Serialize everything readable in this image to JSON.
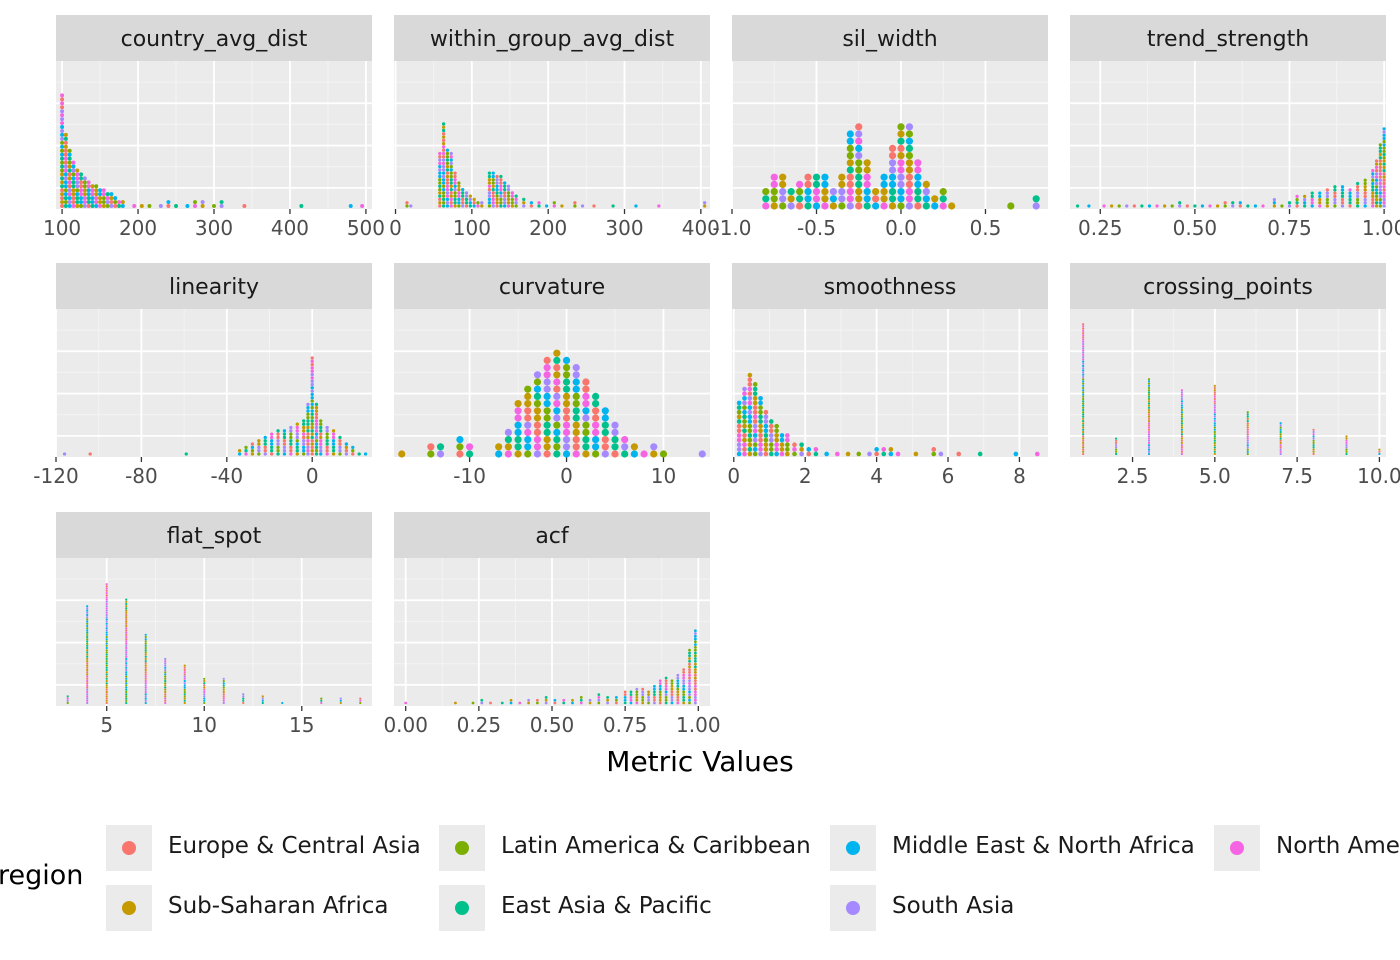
{
  "chart_data": {
    "type": "scatter",
    "subtype": "dotplot-faceted",
    "xlabel": "Metric Values",
    "ylabel": "",
    "grid": true,
    "legend": {
      "title": "region",
      "position": "bottom",
      "entries": [
        {
          "name": "Europe & Central Asia",
          "color": "#F8766D"
        },
        {
          "name": "Latin America & Caribbean",
          "color": "#7CAE00"
        },
        {
          "name": "Middle East & North Africa",
          "color": "#00B4EF"
        },
        {
          "name": "North America",
          "color": "#F564E3"
        },
        {
          "name": "Sub-Saharan Africa",
          "color": "#C49A00"
        },
        {
          "name": "East Asia & Pacific",
          "color": "#00C08B"
        },
        {
          "name": "South Asia",
          "color": "#A58AFF"
        }
      ]
    },
    "panels": [
      {
        "title": "country_avg_dist",
        "xlim": [
          92,
          508
        ],
        "ticks": [
          100,
          200,
          300,
          400,
          500
        ],
        "tick_labels": [
          "100",
          "200",
          "300",
          "400",
          "500"
        ],
        "binwidth": 5.2,
        "bins": [
          [
            100,
            29
          ],
          [
            105,
            19
          ],
          [
            110,
            15
          ],
          [
            115,
            12
          ],
          [
            120,
            10
          ],
          [
            125,
            9
          ],
          [
            130,
            8
          ],
          [
            135,
            7
          ],
          [
            140,
            6
          ],
          [
            145,
            6
          ],
          [
            150,
            5
          ],
          [
            155,
            5
          ],
          [
            160,
            4
          ],
          [
            165,
            4
          ],
          [
            170,
            3
          ],
          [
            175,
            2
          ],
          [
            180,
            2
          ],
          [
            195,
            1
          ],
          [
            205,
            1
          ],
          [
            215,
            1
          ],
          [
            230,
            1
          ],
          [
            240,
            2
          ],
          [
            250,
            1
          ],
          [
            265,
            1
          ],
          [
            275,
            2
          ],
          [
            285,
            2
          ],
          [
            300,
            1
          ],
          [
            310,
            2
          ],
          [
            340,
            1
          ],
          [
            415,
            1
          ],
          [
            480,
            1
          ],
          [
            495,
            1
          ]
        ]
      },
      {
        "title": "within_group_avg_dist",
        "xlim": [
          -2,
          412
        ],
        "ticks": [
          0,
          100,
          200,
          300,
          400
        ],
        "tick_labels": [
          "0",
          "100",
          "200",
          "300",
          "400"
        ],
        "binwidth": 4.3,
        "bins": [
          [
            15,
            2
          ],
          [
            20,
            1
          ],
          [
            58,
            17
          ],
          [
            63,
            26
          ],
          [
            68,
            18
          ],
          [
            73,
            17
          ],
          [
            78,
            11
          ],
          [
            83,
            8
          ],
          [
            88,
            6
          ],
          [
            93,
            5
          ],
          [
            98,
            4
          ],
          [
            103,
            3
          ],
          [
            108,
            2
          ],
          [
            113,
            2
          ],
          [
            123,
            11
          ],
          [
            128,
            11
          ],
          [
            133,
            10
          ],
          [
            138,
            10
          ],
          [
            143,
            8
          ],
          [
            148,
            7
          ],
          [
            153,
            5
          ],
          [
            158,
            4
          ],
          [
            168,
            3
          ],
          [
            178,
            2
          ],
          [
            188,
            2
          ],
          [
            198,
            1
          ],
          [
            208,
            2
          ],
          [
            218,
            1
          ],
          [
            235,
            2
          ],
          [
            245,
            1
          ],
          [
            260,
            1
          ],
          [
            285,
            1
          ],
          [
            315,
            1
          ],
          [
            345,
            1
          ],
          [
            405,
            2
          ]
        ]
      },
      {
        "title": "sil_width",
        "xlim": [
          -1.0,
          0.87
        ],
        "ticks": [
          -1.0,
          -0.5,
          0.0,
          0.5
        ],
        "tick_labels": [
          "-1.0",
          "-0.5",
          "0.0",
          "0.5"
        ],
        "binwidth": 0.045,
        "bins": [
          [
            -0.8,
            3
          ],
          [
            -0.75,
            5
          ],
          [
            -0.7,
            5
          ],
          [
            -0.65,
            3
          ],
          [
            -0.6,
            4
          ],
          [
            -0.55,
            5
          ],
          [
            -0.5,
            5
          ],
          [
            -0.45,
            5
          ],
          [
            -0.4,
            3
          ],
          [
            -0.35,
            5
          ],
          [
            -0.3,
            11
          ],
          [
            -0.25,
            12
          ],
          [
            -0.2,
            7
          ],
          [
            -0.15,
            3
          ],
          [
            -0.1,
            5
          ],
          [
            -0.05,
            9
          ],
          [
            0.0,
            12
          ],
          [
            0.05,
            12
          ],
          [
            0.1,
            7
          ],
          [
            0.15,
            4
          ],
          [
            0.2,
            2
          ],
          [
            0.25,
            3
          ],
          [
            0.3,
            1
          ],
          [
            0.65,
            1
          ],
          [
            0.8,
            2
          ]
        ]
      },
      {
        "title": "trend_strength",
        "xlim": [
          0.17,
          1.005
        ],
        "ticks": [
          0.25,
          0.5,
          0.75,
          1.0
        ],
        "tick_labels": [
          "0.25",
          "0.50",
          "0.75",
          "1.00"
        ],
        "binwidth": 0.0085,
        "bins": [
          [
            0.19,
            1
          ],
          [
            0.22,
            1
          ],
          [
            0.26,
            1
          ],
          [
            0.28,
            1
          ],
          [
            0.3,
            1
          ],
          [
            0.32,
            1
          ],
          [
            0.34,
            1
          ],
          [
            0.36,
            1
          ],
          [
            0.38,
            1
          ],
          [
            0.4,
            1
          ],
          [
            0.42,
            1
          ],
          [
            0.44,
            1
          ],
          [
            0.46,
            2
          ],
          [
            0.48,
            1
          ],
          [
            0.5,
            1
          ],
          [
            0.52,
            1
          ],
          [
            0.54,
            1
          ],
          [
            0.56,
            1
          ],
          [
            0.58,
            2
          ],
          [
            0.6,
            2
          ],
          [
            0.62,
            2
          ],
          [
            0.64,
            1
          ],
          [
            0.66,
            1
          ],
          [
            0.68,
            1
          ],
          [
            0.71,
            3
          ],
          [
            0.73,
            1
          ],
          [
            0.75,
            2
          ],
          [
            0.77,
            4
          ],
          [
            0.79,
            4
          ],
          [
            0.81,
            5
          ],
          [
            0.83,
            5
          ],
          [
            0.85,
            6
          ],
          [
            0.87,
            7
          ],
          [
            0.89,
            7
          ],
          [
            0.91,
            6
          ],
          [
            0.93,
            8
          ],
          [
            0.95,
            9
          ],
          [
            0.97,
            12
          ],
          [
            0.98,
            15
          ],
          [
            0.99,
            20
          ],
          [
            1.0,
            25
          ]
        ]
      },
      {
        "title": "linearity",
        "xlim": [
          -120,
          28
        ],
        "ticks": [
          -120,
          -80,
          -40,
          0
        ],
        "tick_labels": [
          "-120",
          "-80",
          "-40",
          "0"
        ],
        "binwidth": 1.55,
        "bins": [
          [
            -116,
            1
          ],
          [
            -104,
            1
          ],
          [
            -59,
            1
          ],
          [
            -34,
            2
          ],
          [
            -31,
            3
          ],
          [
            -28,
            4
          ],
          [
            -25,
            5
          ],
          [
            -22,
            6
          ],
          [
            -19,
            7
          ],
          [
            -16,
            8
          ],
          [
            -13,
            8
          ],
          [
            -10,
            9
          ],
          [
            -7,
            10
          ],
          [
            -4,
            11
          ],
          [
            -2,
            16
          ],
          [
            0,
            30
          ],
          [
            2,
            16
          ],
          [
            4,
            11
          ],
          [
            7,
            9
          ],
          [
            10,
            8
          ],
          [
            13,
            6
          ],
          [
            16,
            4
          ],
          [
            19,
            3
          ],
          [
            22,
            1
          ],
          [
            25,
            1
          ]
        ]
      },
      {
        "title": "curvature",
        "xlim": [
          -17.8,
          14.8
        ],
        "ticks": [
          -10,
          0,
          10
        ],
        "tick_labels": [
          "-10",
          "0",
          "10"
        ],
        "binwidth": 0.75,
        "bins": [
          [
            -17,
            1
          ],
          [
            -14,
            2
          ],
          [
            -13,
            2
          ],
          [
            -11,
            3
          ],
          [
            -10,
            2
          ],
          [
            -7,
            2
          ],
          [
            -6,
            4
          ],
          [
            -5,
            8
          ],
          [
            -4,
            10
          ],
          [
            -3,
            12
          ],
          [
            -2,
            14
          ],
          [
            -1,
            15
          ],
          [
            0,
            14
          ],
          [
            1,
            13
          ],
          [
            2,
            11
          ],
          [
            3,
            9
          ],
          [
            4,
            7
          ],
          [
            5,
            5
          ],
          [
            6,
            3
          ],
          [
            7,
            2
          ],
          [
            8,
            1
          ],
          [
            9,
            2
          ],
          [
            10,
            1
          ],
          [
            14,
            1
          ]
        ]
      },
      {
        "title": "smoothness",
        "xlim": [
          -0.05,
          8.8
        ],
        "ticks": [
          0,
          2,
          4,
          6,
          8
        ],
        "tick_labels": [
          "0",
          "2",
          "4",
          "6",
          "8"
        ],
        "binwidth": 0.13,
        "bins": [
          [
            0.15,
            12
          ],
          [
            0.3,
            15
          ],
          [
            0.45,
            18
          ],
          [
            0.6,
            16
          ],
          [
            0.75,
            13
          ],
          [
            0.9,
            10
          ],
          [
            1.05,
            8
          ],
          [
            1.2,
            7
          ],
          [
            1.35,
            5
          ],
          [
            1.5,
            5
          ],
          [
            1.7,
            3
          ],
          [
            1.9,
            3
          ],
          [
            2.1,
            2
          ],
          [
            2.3,
            2
          ],
          [
            2.6,
            1
          ],
          [
            2.9,
            1
          ],
          [
            3.2,
            1
          ],
          [
            3.5,
            1
          ],
          [
            3.8,
            1
          ],
          [
            4.0,
            2
          ],
          [
            4.2,
            2
          ],
          [
            4.4,
            2
          ],
          [
            4.6,
            1
          ],
          [
            5.1,
            1
          ],
          [
            5.6,
            2
          ],
          [
            5.8,
            1
          ],
          [
            6.3,
            1
          ],
          [
            6.9,
            1
          ],
          [
            7.9,
            1
          ],
          [
            8.5,
            1
          ]
        ]
      },
      {
        "title": "crossing_points",
        "xlim": [
          0.6,
          10.2
        ],
        "ticks": [
          2.5,
          5.0,
          7.5,
          10.0
        ],
        "tick_labels": [
          "2.5",
          "5.0",
          "7.5",
          "10.0"
        ],
        "binwidth": 0.015,
        "bins": [
          [
            1,
            60
          ],
          [
            2,
            8
          ],
          [
            3,
            35
          ],
          [
            4,
            30
          ],
          [
            5,
            32
          ],
          [
            6,
            20
          ],
          [
            7,
            15
          ],
          [
            8,
            12
          ],
          [
            9,
            9
          ],
          [
            10,
            3
          ]
        ]
      },
      {
        "title": "flat_spot",
        "xlim": [
          2.4,
          18.6
        ],
        "ticks": [
          5,
          10,
          15
        ],
        "tick_labels": [
          "5",
          "10",
          "15"
        ],
        "binwidth": 0.04,
        "bins": [
          [
            3,
            4
          ],
          [
            4,
            45
          ],
          [
            5,
            55
          ],
          [
            6,
            48
          ],
          [
            7,
            32
          ],
          [
            8,
            21
          ],
          [
            9,
            18
          ],
          [
            10,
            12
          ],
          [
            11,
            12
          ],
          [
            12,
            5
          ],
          [
            13,
            4
          ],
          [
            14,
            1
          ],
          [
            16,
            3
          ],
          [
            17,
            3
          ],
          [
            18,
            3
          ]
        ]
      },
      {
        "title": "acf",
        "xlim": [
          -0.04,
          1.04
        ],
        "ticks": [
          0.0,
          0.25,
          0.5,
          0.75,
          1.0
        ],
        "tick_labels": [
          "0.00",
          "0.25",
          "0.50",
          "0.75",
          "1.00"
        ],
        "binwidth": 0.0095,
        "bins": [
          [
            0.0,
            1
          ],
          [
            0.17,
            1
          ],
          [
            0.23,
            1
          ],
          [
            0.26,
            2
          ],
          [
            0.29,
            1
          ],
          [
            0.33,
            1
          ],
          [
            0.36,
            2
          ],
          [
            0.39,
            1
          ],
          [
            0.42,
            2
          ],
          [
            0.45,
            2
          ],
          [
            0.48,
            3
          ],
          [
            0.51,
            2
          ],
          [
            0.54,
            2
          ],
          [
            0.57,
            2
          ],
          [
            0.6,
            3
          ],
          [
            0.63,
            2
          ],
          [
            0.66,
            4
          ],
          [
            0.69,
            3
          ],
          [
            0.72,
            3
          ],
          [
            0.75,
            5
          ],
          [
            0.77,
            5
          ],
          [
            0.79,
            6
          ],
          [
            0.81,
            6
          ],
          [
            0.83,
            5
          ],
          [
            0.85,
            7
          ],
          [
            0.87,
            9
          ],
          [
            0.89,
            10
          ],
          [
            0.91,
            9
          ],
          [
            0.93,
            11
          ],
          [
            0.95,
            13
          ],
          [
            0.97,
            20
          ],
          [
            0.99,
            27
          ]
        ]
      }
    ]
  }
}
